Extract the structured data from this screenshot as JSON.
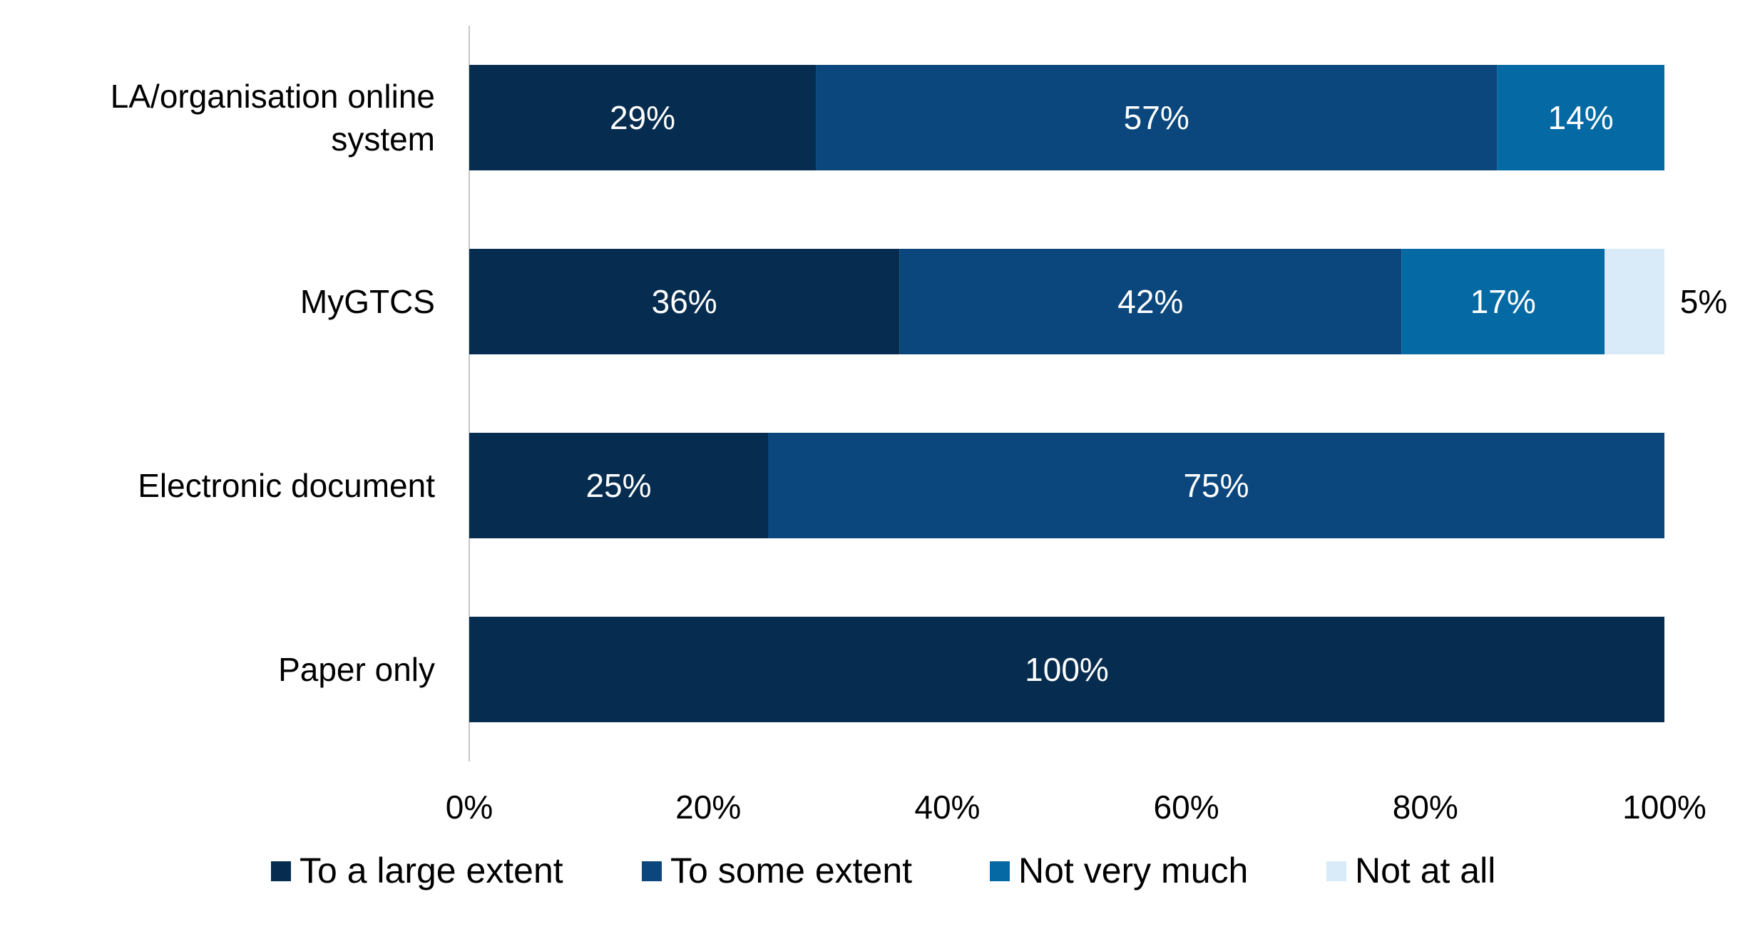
{
  "chart_data": {
    "type": "bar",
    "orientation": "horizontal",
    "stacked": true,
    "categories": [
      [
        "LA/organisation online",
        "system"
      ],
      [
        "MyGTCS"
      ],
      [
        "Electronic document"
      ],
      [
        "Paper only"
      ]
    ],
    "series": [
      {
        "name": "To a large extent",
        "color": "#062c4f",
        "values": [
          29,
          36,
          25,
          100
        ],
        "labels": [
          "29%",
          "36%",
          "25%",
          "100%"
        ]
      },
      {
        "name": "To some extent",
        "color": "#0b477c",
        "values": [
          57,
          42,
          75,
          0
        ],
        "labels": [
          "57%",
          "42%",
          "75%",
          ""
        ]
      },
      {
        "name": "Not very much",
        "color": "#056aa3",
        "values": [
          14,
          17,
          0,
          0
        ],
        "labels": [
          "14%",
          "17%",
          "",
          ""
        ]
      },
      {
        "name": "Not at all",
        "color": "#d9ebf9",
        "values": [
          0,
          5,
          0,
          0
        ],
        "labels": [
          "",
          "5%",
          "",
          ""
        ]
      }
    ],
    "xlim": [
      0,
      100
    ],
    "x_ticks": [
      "0%",
      "20%",
      "40%",
      "60%",
      "80%",
      "100%"
    ],
    "grid": false,
    "legend_position": "bottom"
  }
}
